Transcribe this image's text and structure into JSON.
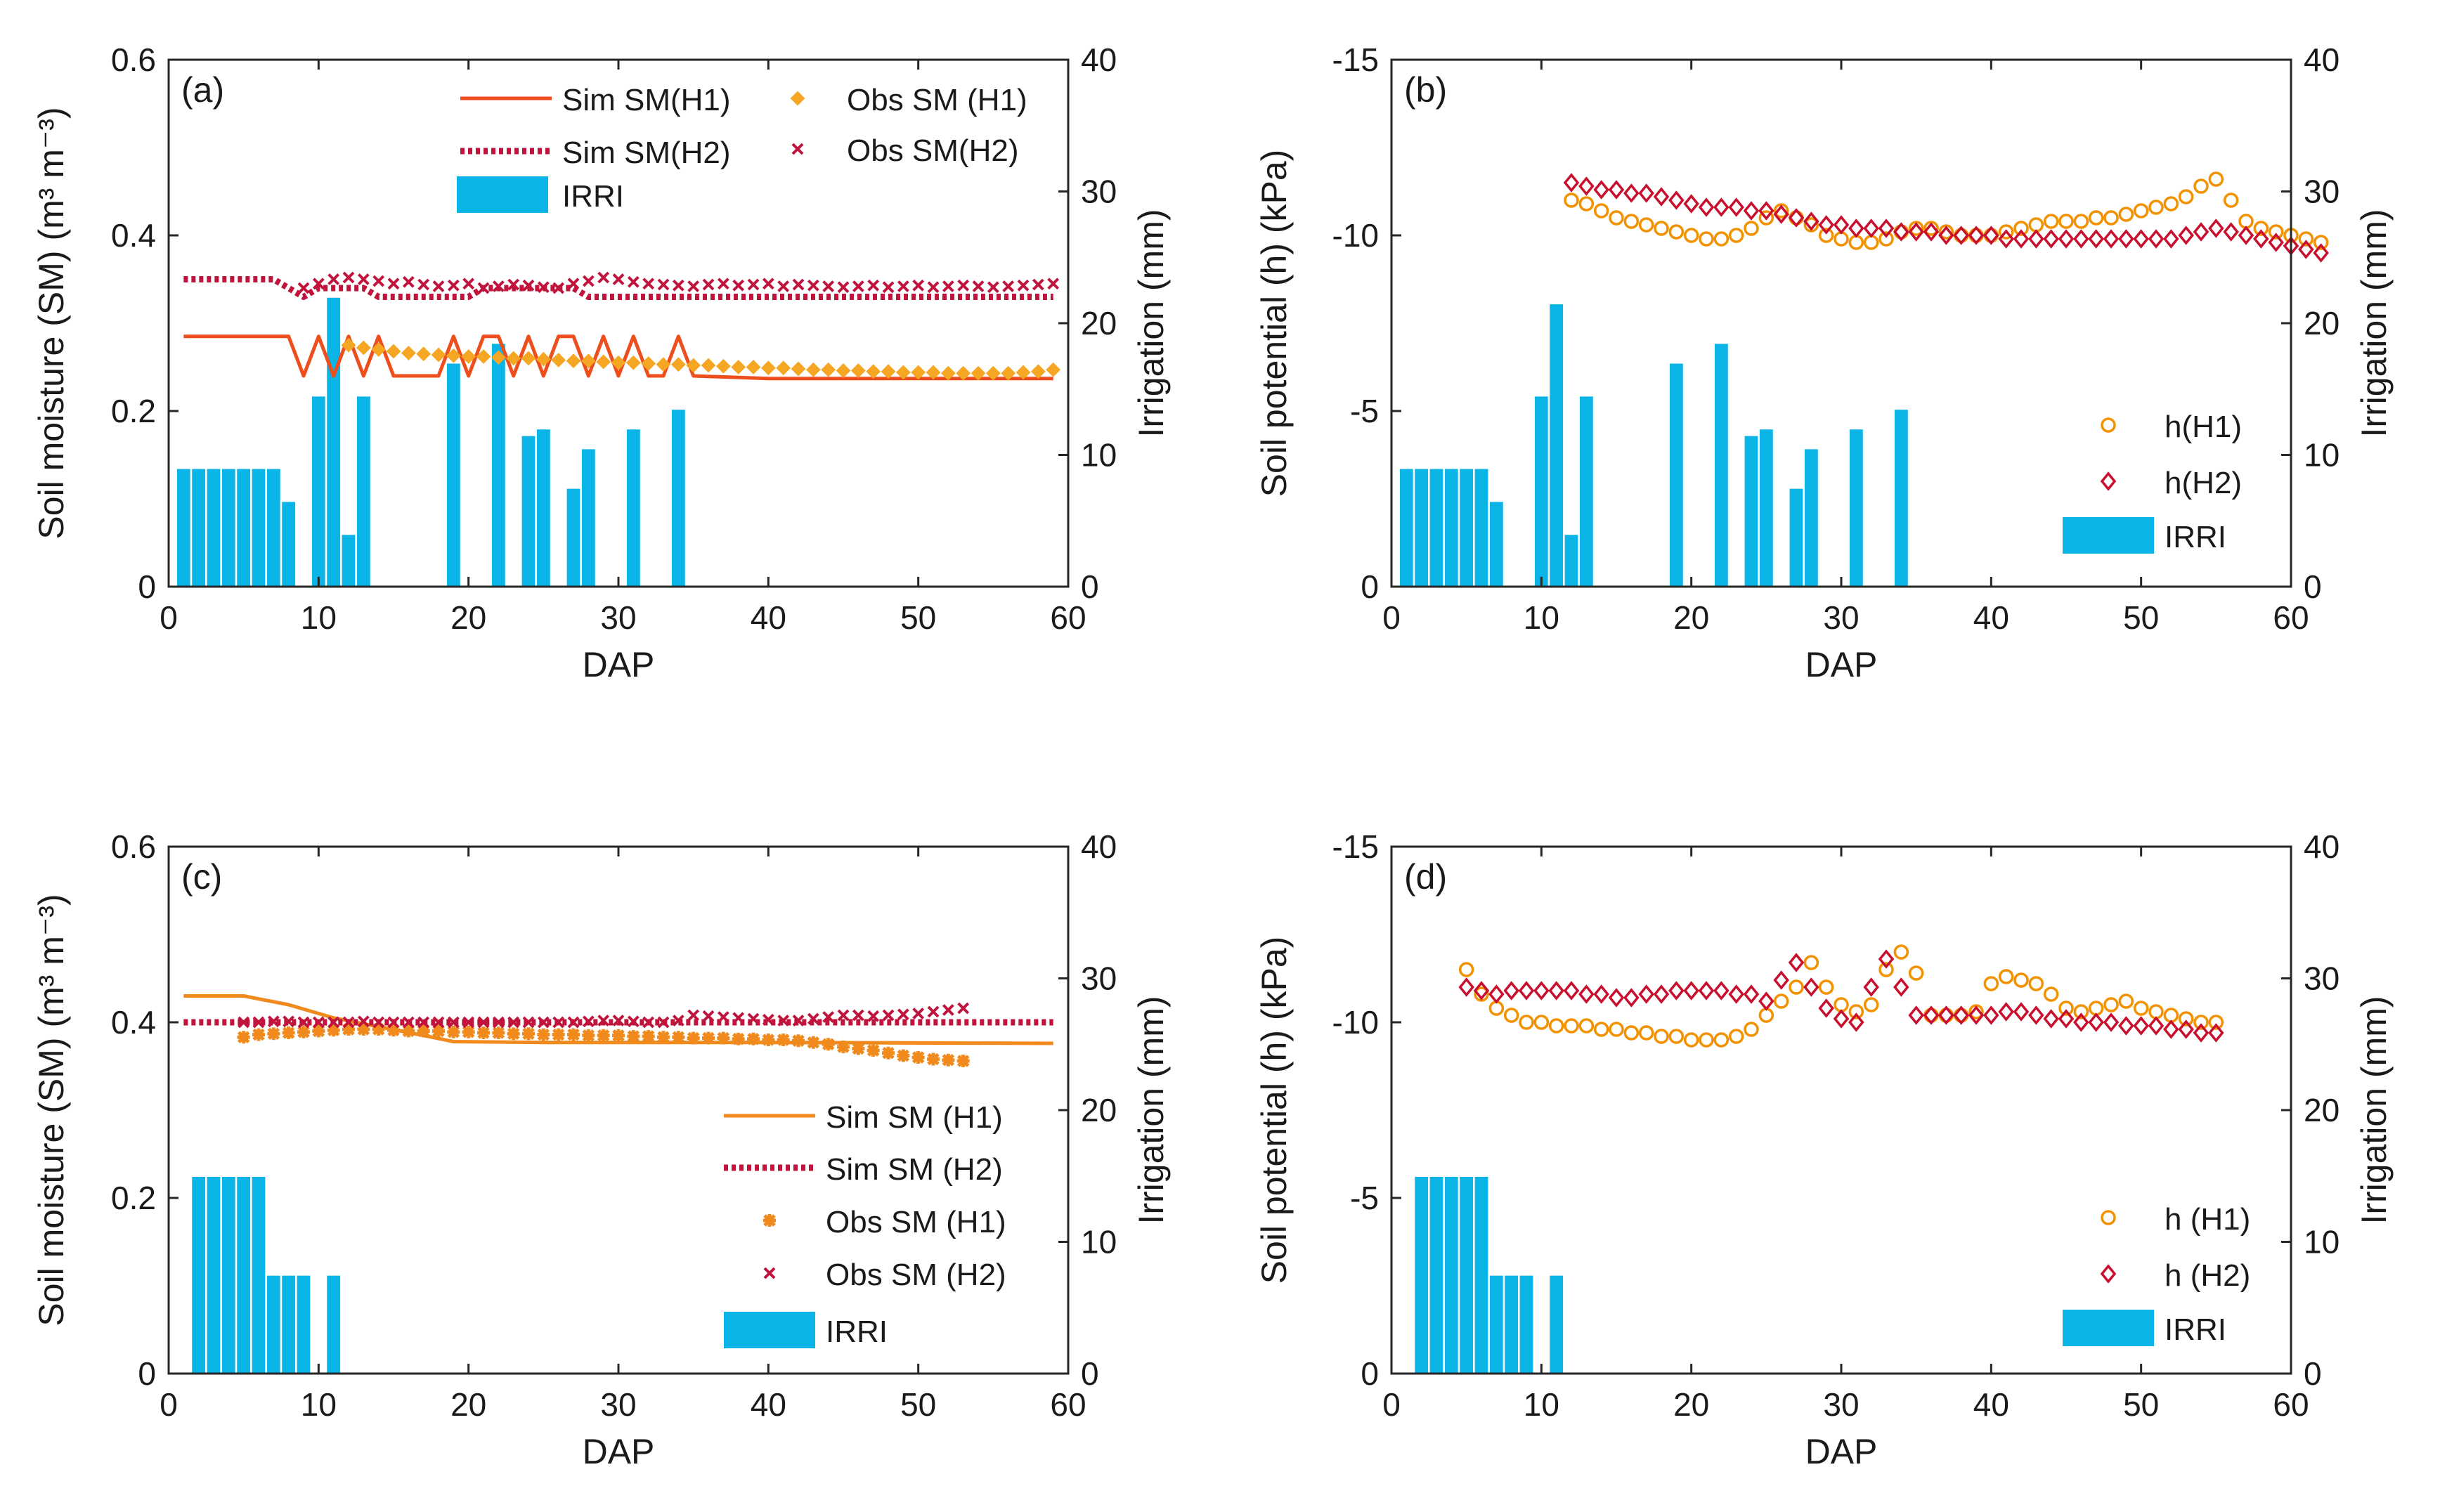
{
  "figure": {
    "colors": {
      "h1_line": "#ee4e1c",
      "h1_obs": "#f5a623",
      "h2": "#c0143c",
      "irri": "#0ab4e6",
      "h1_line_c": "#f08a1c",
      "h1_obs_c": "#f08a1c",
      "h1_circle": "#f39200",
      "h2_diamond": "#c8102e"
    }
  },
  "chart_data": [
    {
      "id": "a",
      "panel_label": "(a)",
      "type": "line",
      "xlabel": "DAP",
      "ylabel_left": "Soil moisture (SM) (m³ m⁻³)",
      "ylabel_right": "Irrigation (mm)",
      "xlim": [
        0,
        60
      ],
      "ylim_left": [
        0,
        0.6
      ],
      "ylim_right": [
        0,
        40
      ],
      "x_ticks": [
        "0",
        "10",
        "20",
        "30",
        "40",
        "50",
        "60"
      ],
      "y_ticks_left": [
        "0",
        "0.2",
        "0.4",
        "0.6"
      ],
      "y_ticks_right": [
        "0",
        "10",
        "20",
        "30",
        "40"
      ],
      "legend": {
        "sim_h1": "Sim SM(H1)",
        "sim_h2": "Sim SM(H2)",
        "obs_h1": "Obs SM (H1)",
        "obs_h2": "Obs SM(H2)",
        "irri": "IRRI"
      },
      "series": [
        {
          "name": "Sim SM(H1)",
          "axis": "left",
          "style": "solid",
          "x": [
            1,
            8,
            9,
            10,
            11,
            12,
            13,
            14,
            15,
            16,
            17,
            18,
            19,
            20,
            21,
            22,
            23,
            24,
            25,
            26,
            27,
            28,
            29,
            30,
            31,
            32,
            33,
            34,
            35,
            40,
            50,
            59
          ],
          "y": [
            0.285,
            0.285,
            0.24,
            0.285,
            0.24,
            0.285,
            0.24,
            0.285,
            0.24,
            0.24,
            0.24,
            0.24,
            0.285,
            0.24,
            0.285,
            0.285,
            0.24,
            0.285,
            0.24,
            0.285,
            0.285,
            0.24,
            0.285,
            0.24,
            0.285,
            0.24,
            0.24,
            0.285,
            0.24,
            0.237,
            0.237,
            0.237
          ]
        },
        {
          "name": "Sim SM(H2)",
          "axis": "left",
          "style": "dotted",
          "x": [
            1,
            7,
            8,
            9,
            10,
            13,
            14,
            20,
            21,
            27,
            28,
            33,
            34,
            59
          ],
          "y": [
            0.35,
            0.35,
            0.34,
            0.33,
            0.34,
            0.34,
            0.33,
            0.33,
            0.34,
            0.34,
            0.33,
            0.33,
            0.33,
            0.33
          ]
        },
        {
          "name": "Obs SM (H1)",
          "axis": "left",
          "style": "marker-diamond",
          "x_start": 12,
          "x_step": 1,
          "y": [
            0.275,
            0.272,
            0.27,
            0.268,
            0.266,
            0.265,
            0.264,
            0.263,
            0.262,
            0.262,
            0.261,
            0.26,
            0.26,
            0.259,
            0.258,
            0.257,
            0.257,
            0.256,
            0.255,
            0.255,
            0.254,
            0.253,
            0.253,
            0.252,
            0.252,
            0.251,
            0.25,
            0.25,
            0.249,
            0.249,
            0.248,
            0.247,
            0.247,
            0.246,
            0.246,
            0.245,
            0.245,
            0.244,
            0.244,
            0.244,
            0.243,
            0.243,
            0.243,
            0.243,
            0.243,
            0.244,
            0.245,
            0.247
          ]
        },
        {
          "name": "Obs SM(H2)",
          "axis": "left",
          "style": "marker-x",
          "x_start": 9,
          "x_step": 1,
          "y": [
            0.34,
            0.345,
            0.35,
            0.352,
            0.35,
            0.348,
            0.345,
            0.347,
            0.344,
            0.342,
            0.343,
            0.345,
            0.34,
            0.342,
            0.344,
            0.343,
            0.341,
            0.34,
            0.345,
            0.348,
            0.352,
            0.35,
            0.347,
            0.345,
            0.344,
            0.343,
            0.342,
            0.344,
            0.345,
            0.343,
            0.344,
            0.345,
            0.342,
            0.344,
            0.343,
            0.342,
            0.341,
            0.342,
            0.343,
            0.341,
            0.342,
            0.343,
            0.341,
            0.342,
            0.343,
            0.342,
            0.341,
            0.342,
            0.343,
            0.344,
            0.345
          ]
        },
        {
          "name": "IRRI",
          "axis": "right",
          "style": "bar",
          "x": [
            1,
            2,
            3,
            4,
            5,
            6,
            7,
            8,
            10,
            11,
            12,
            13,
            19,
            22,
            24,
            25,
            27,
            28,
            31,
            34
          ],
          "y": [
            9,
            9,
            9,
            9,
            9,
            9,
            9,
            6.5,
            14.5,
            22,
            4,
            14.5,
            17,
            18.5,
            11.5,
            12,
            7.5,
            10.5,
            12,
            13.5
          ]
        }
      ]
    },
    {
      "id": "b",
      "panel_label": "(b)",
      "type": "scatter",
      "xlabel": "DAP",
      "ylabel_left": "Soil potential (h) (kPa)",
      "ylabel_right": "Irrigation (mm)",
      "xlim": [
        0,
        60
      ],
      "ylim_left": [
        0,
        -15
      ],
      "ylim_right": [
        0,
        40
      ],
      "x_ticks": [
        "0",
        "10",
        "20",
        "30",
        "40",
        "50",
        "60"
      ],
      "y_ticks_left": [
        "0",
        "-5",
        "-10",
        "-15"
      ],
      "y_ticks_right": [
        "0",
        "10",
        "20",
        "30",
        "40"
      ],
      "legend": {
        "h1": "h(H1)",
        "h2": "h(H2)",
        "irri": "IRRI"
      },
      "series": [
        {
          "name": "h(H1)",
          "axis": "left",
          "style": "marker-circle",
          "x_start": 12,
          "x_step": 1,
          "y": [
            -11.0,
            -10.9,
            -10.7,
            -10.5,
            -10.4,
            -10.3,
            -10.2,
            -10.1,
            -10.0,
            -9.9,
            -9.9,
            -10.0,
            -10.2,
            -10.5,
            -10.7,
            -10.5,
            -10.3,
            -10.0,
            -9.9,
            -9.8,
            -9.8,
            -9.9,
            -10.1,
            -10.2,
            -10.2,
            -10.1,
            -10.0,
            -10.0,
            -10.0,
            -10.1,
            -10.2,
            -10.3,
            -10.4,
            -10.4,
            -10.4,
            -10.5,
            -10.5,
            -10.6,
            -10.7,
            -10.8,
            -10.9,
            -11.1,
            -11.4,
            -11.6,
            -11.0,
            -10.4,
            -10.2,
            -10.1,
            -10.0,
            -9.9,
            -9.8
          ]
        },
        {
          "name": "h(H2)",
          "axis": "left",
          "style": "marker-diamond-open",
          "x_start": 12,
          "x_step": 1,
          "y": [
            -11.5,
            -11.4,
            -11.3,
            -11.3,
            -11.2,
            -11.2,
            -11.1,
            -11.0,
            -10.9,
            -10.8,
            -10.8,
            -10.8,
            -10.7,
            -10.7,
            -10.6,
            -10.5,
            -10.4,
            -10.3,
            -10.3,
            -10.2,
            -10.2,
            -10.2,
            -10.1,
            -10.1,
            -10.1,
            -10.0,
            -10.0,
            -10.0,
            -10.0,
            -9.9,
            -9.9,
            -9.9,
            -9.9,
            -9.9,
            -9.9,
            -9.9,
            -9.9,
            -9.9,
            -9.9,
            -9.9,
            -9.9,
            -10.0,
            -10.1,
            -10.2,
            -10.1,
            -10.0,
            -9.9,
            -9.8,
            -9.7,
            -9.6,
            -9.5
          ]
        },
        {
          "name": "IRRI",
          "axis": "right",
          "style": "bar",
          "x": [
            1,
            2,
            3,
            4,
            5,
            6,
            7,
            10,
            11,
            12,
            13,
            19,
            22,
            24,
            25,
            27,
            28,
            31,
            34
          ],
          "y": [
            9,
            9,
            9,
            9,
            9,
            9,
            6.5,
            14.5,
            21.5,
            4,
            14.5,
            17,
            18.5,
            11.5,
            12,
            7.5,
            10.5,
            12,
            13.5
          ]
        }
      ]
    },
    {
      "id": "c",
      "panel_label": "(c)",
      "type": "line",
      "xlabel": "DAP",
      "ylabel_left": "Soil moisture (SM) (m³ m⁻³)",
      "ylabel_right": "Irrigation (mm)",
      "xlim": [
        0,
        60
      ],
      "ylim_left": [
        0,
        0.6
      ],
      "ylim_right": [
        0,
        40
      ],
      "x_ticks": [
        "0",
        "10",
        "20",
        "30",
        "40",
        "50",
        "60"
      ],
      "y_ticks_left": [
        "0",
        "0.2",
        "0.4",
        "0.6"
      ],
      "y_ticks_right": [
        "0",
        "10",
        "20",
        "30",
        "40"
      ],
      "legend": {
        "sim_h1": "Sim SM (H1)",
        "sim_h2": "Sim SM (H2)",
        "obs_h1": "Obs SM (H1)",
        "obs_h2": "Obs SM (H2)",
        "irri": "IRRI"
      },
      "series": [
        {
          "name": "Sim SM (H1)",
          "axis": "left",
          "style": "solid",
          "x": [
            1,
            5,
            8,
            11,
            14,
            17,
            19,
            25,
            40,
            59
          ],
          "y": [
            0.43,
            0.43,
            0.42,
            0.405,
            0.395,
            0.385,
            0.378,
            0.377,
            0.377,
            0.376
          ]
        },
        {
          "name": "Sim SM (H2)",
          "axis": "left",
          "style": "dotted",
          "x": [
            1,
            59
          ],
          "y": [
            0.4,
            0.4
          ]
        },
        {
          "name": "Obs SM (H1)",
          "axis": "left",
          "style": "marker-star",
          "x_start": 5,
          "x_step": 1,
          "y": [
            0.383,
            0.386,
            0.387,
            0.388,
            0.389,
            0.39,
            0.391,
            0.392,
            0.392,
            0.392,
            0.391,
            0.39,
            0.39,
            0.39,
            0.389,
            0.389,
            0.388,
            0.388,
            0.387,
            0.387,
            0.386,
            0.386,
            0.386,
            0.385,
            0.385,
            0.385,
            0.384,
            0.384,
            0.383,
            0.383,
            0.382,
            0.382,
            0.382,
            0.381,
            0.381,
            0.38,
            0.38,
            0.379,
            0.377,
            0.375,
            0.372,
            0.37,
            0.368,
            0.365,
            0.362,
            0.36,
            0.358,
            0.357,
            0.356
          ]
        },
        {
          "name": "Obs SM (H2)",
          "axis": "left",
          "style": "marker-x",
          "x_start": 5,
          "x_step": 1,
          "y": [
            0.4,
            0.4,
            0.401,
            0.401,
            0.4,
            0.4,
            0.4,
            0.4,
            0.401,
            0.4,
            0.4,
            0.4,
            0.4,
            0.4,
            0.4,
            0.4,
            0.4,
            0.4,
            0.4,
            0.4,
            0.4,
            0.4,
            0.4,
            0.401,
            0.402,
            0.402,
            0.401,
            0.4,
            0.4,
            0.402,
            0.408,
            0.407,
            0.406,
            0.405,
            0.404,
            0.403,
            0.402,
            0.402,
            0.404,
            0.406,
            0.408,
            0.408,
            0.407,
            0.408,
            0.409,
            0.41,
            0.412,
            0.414,
            0.416
          ]
        },
        {
          "name": "IRRI",
          "axis": "right",
          "style": "bar",
          "x": [
            2,
            3,
            4,
            5,
            6,
            7,
            8,
            9,
            11
          ],
          "y": [
            15,
            15,
            15,
            15,
            15,
            7.5,
            7.5,
            7.5,
            7.5
          ]
        }
      ]
    },
    {
      "id": "d",
      "panel_label": "(d)",
      "type": "scatter",
      "xlabel": "DAP",
      "ylabel_left": "Soil potential (h) (kPa)",
      "ylabel_right": "Irrigation (mm)",
      "xlim": [
        0,
        60
      ],
      "ylim_left": [
        0,
        -15
      ],
      "ylim_right": [
        0,
        40
      ],
      "x_ticks": [
        "0",
        "10",
        "20",
        "30",
        "40",
        "50",
        "60"
      ],
      "y_ticks_left": [
        "0",
        "-5",
        "-10",
        "-15"
      ],
      "y_ticks_right": [
        "0",
        "10",
        "20",
        "30",
        "40"
      ],
      "legend": {
        "h1": "h (H1)",
        "h2": "h (H2)",
        "irri": "IRRI"
      },
      "series": [
        {
          "name": "h (H1)",
          "axis": "left",
          "style": "marker-circle",
          "x_start": 5,
          "x_step": 1,
          "y": [
            -11.5,
            -10.8,
            -10.4,
            -10.2,
            -10.0,
            -10.0,
            -9.9,
            -9.9,
            -9.9,
            -9.8,
            -9.8,
            -9.7,
            -9.7,
            -9.6,
            -9.6,
            -9.5,
            -9.5,
            -9.5,
            -9.6,
            -9.8,
            -10.2,
            -10.6,
            -11.0,
            -11.7,
            -11.0,
            -10.5,
            -10.3,
            -10.5,
            -11.5,
            -12.0,
            -11.4,
            -10.2,
            -10.2,
            -10.2,
            -10.3,
            -11.1,
            -11.3,
            -11.2,
            -11.1,
            -10.8,
            -10.4,
            -10.3,
            -10.4,
            -10.5,
            -10.6,
            -10.4,
            -10.3,
            -10.2,
            -10.1,
            -10.0,
            -10.0
          ]
        },
        {
          "name": "h (H2)",
          "axis": "left",
          "style": "marker-diamond-open",
          "x_start": 5,
          "x_step": 1,
          "y": [
            -11.0,
            -10.9,
            -10.8,
            -10.9,
            -10.9,
            -10.9,
            -10.9,
            -10.9,
            -10.8,
            -10.8,
            -10.7,
            -10.7,
            -10.8,
            -10.8,
            -10.9,
            -10.9,
            -10.9,
            -10.9,
            -10.8,
            -10.8,
            -10.6,
            -11.2,
            -11.7,
            -11.0,
            -10.4,
            -10.1,
            -10.0,
            -11.0,
            -11.8,
            -11.0,
            -10.2,
            -10.2,
            -10.2,
            -10.2,
            -10.2,
            -10.2,
            -10.3,
            -10.3,
            -10.2,
            -10.1,
            -10.1,
            -10.0,
            -10.0,
            -10.0,
            -9.9,
            -9.9,
            -9.9,
            -9.8,
            -9.8,
            -9.7,
            -9.7
          ]
        },
        {
          "name": "IRRI",
          "axis": "right",
          "style": "bar",
          "x": [
            2,
            3,
            4,
            5,
            6,
            7,
            8,
            9,
            11
          ],
          "y": [
            15,
            15,
            15,
            15,
            15,
            7.5,
            7.5,
            7.5,
            7.5
          ]
        }
      ]
    }
  ]
}
